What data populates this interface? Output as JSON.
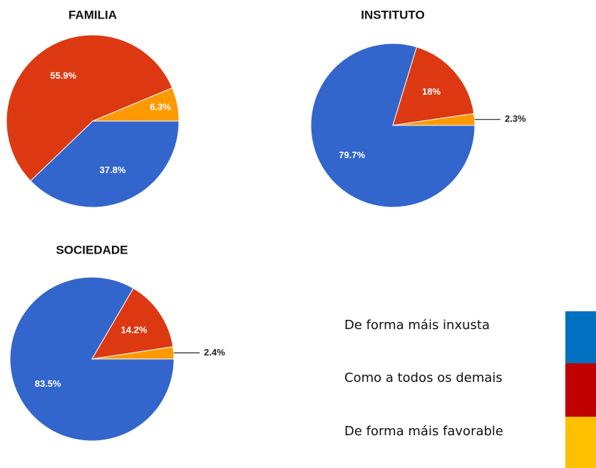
{
  "chart_data": [
    {
      "type": "pie",
      "title": "FAMILIA",
      "values": [
        37.8,
        55.9,
        6.3
      ],
      "value_labels": [
        "37.8%",
        "55.9%",
        "6.3%"
      ],
      "colors": [
        "#3366cc",
        "#dc3912",
        "#ff9900"
      ]
    },
    {
      "type": "pie",
      "title": "INSTITUTO",
      "values": [
        79.7,
        18,
        2.3
      ],
      "value_labels": [
        "79.7%",
        "18%",
        "2.3%"
      ],
      "colors": [
        "#3366cc",
        "#dc3912",
        "#ff9900"
      ]
    },
    {
      "type": "pie",
      "title": "SOCIEDADE",
      "values": [
        83.5,
        14.2,
        2.4
      ],
      "value_labels": [
        "83.5%",
        "14.2%",
        "2.4%"
      ],
      "colors": [
        "#3366cc",
        "#dc3912",
        "#ff9900"
      ]
    }
  ],
  "legend": {
    "labels": [
      "De forma máis inxusta",
      "Como a todos os demais",
      "De forma máis favorable"
    ],
    "colors": [
      "#0070c0",
      "#c00000",
      "#ffc000"
    ]
  }
}
